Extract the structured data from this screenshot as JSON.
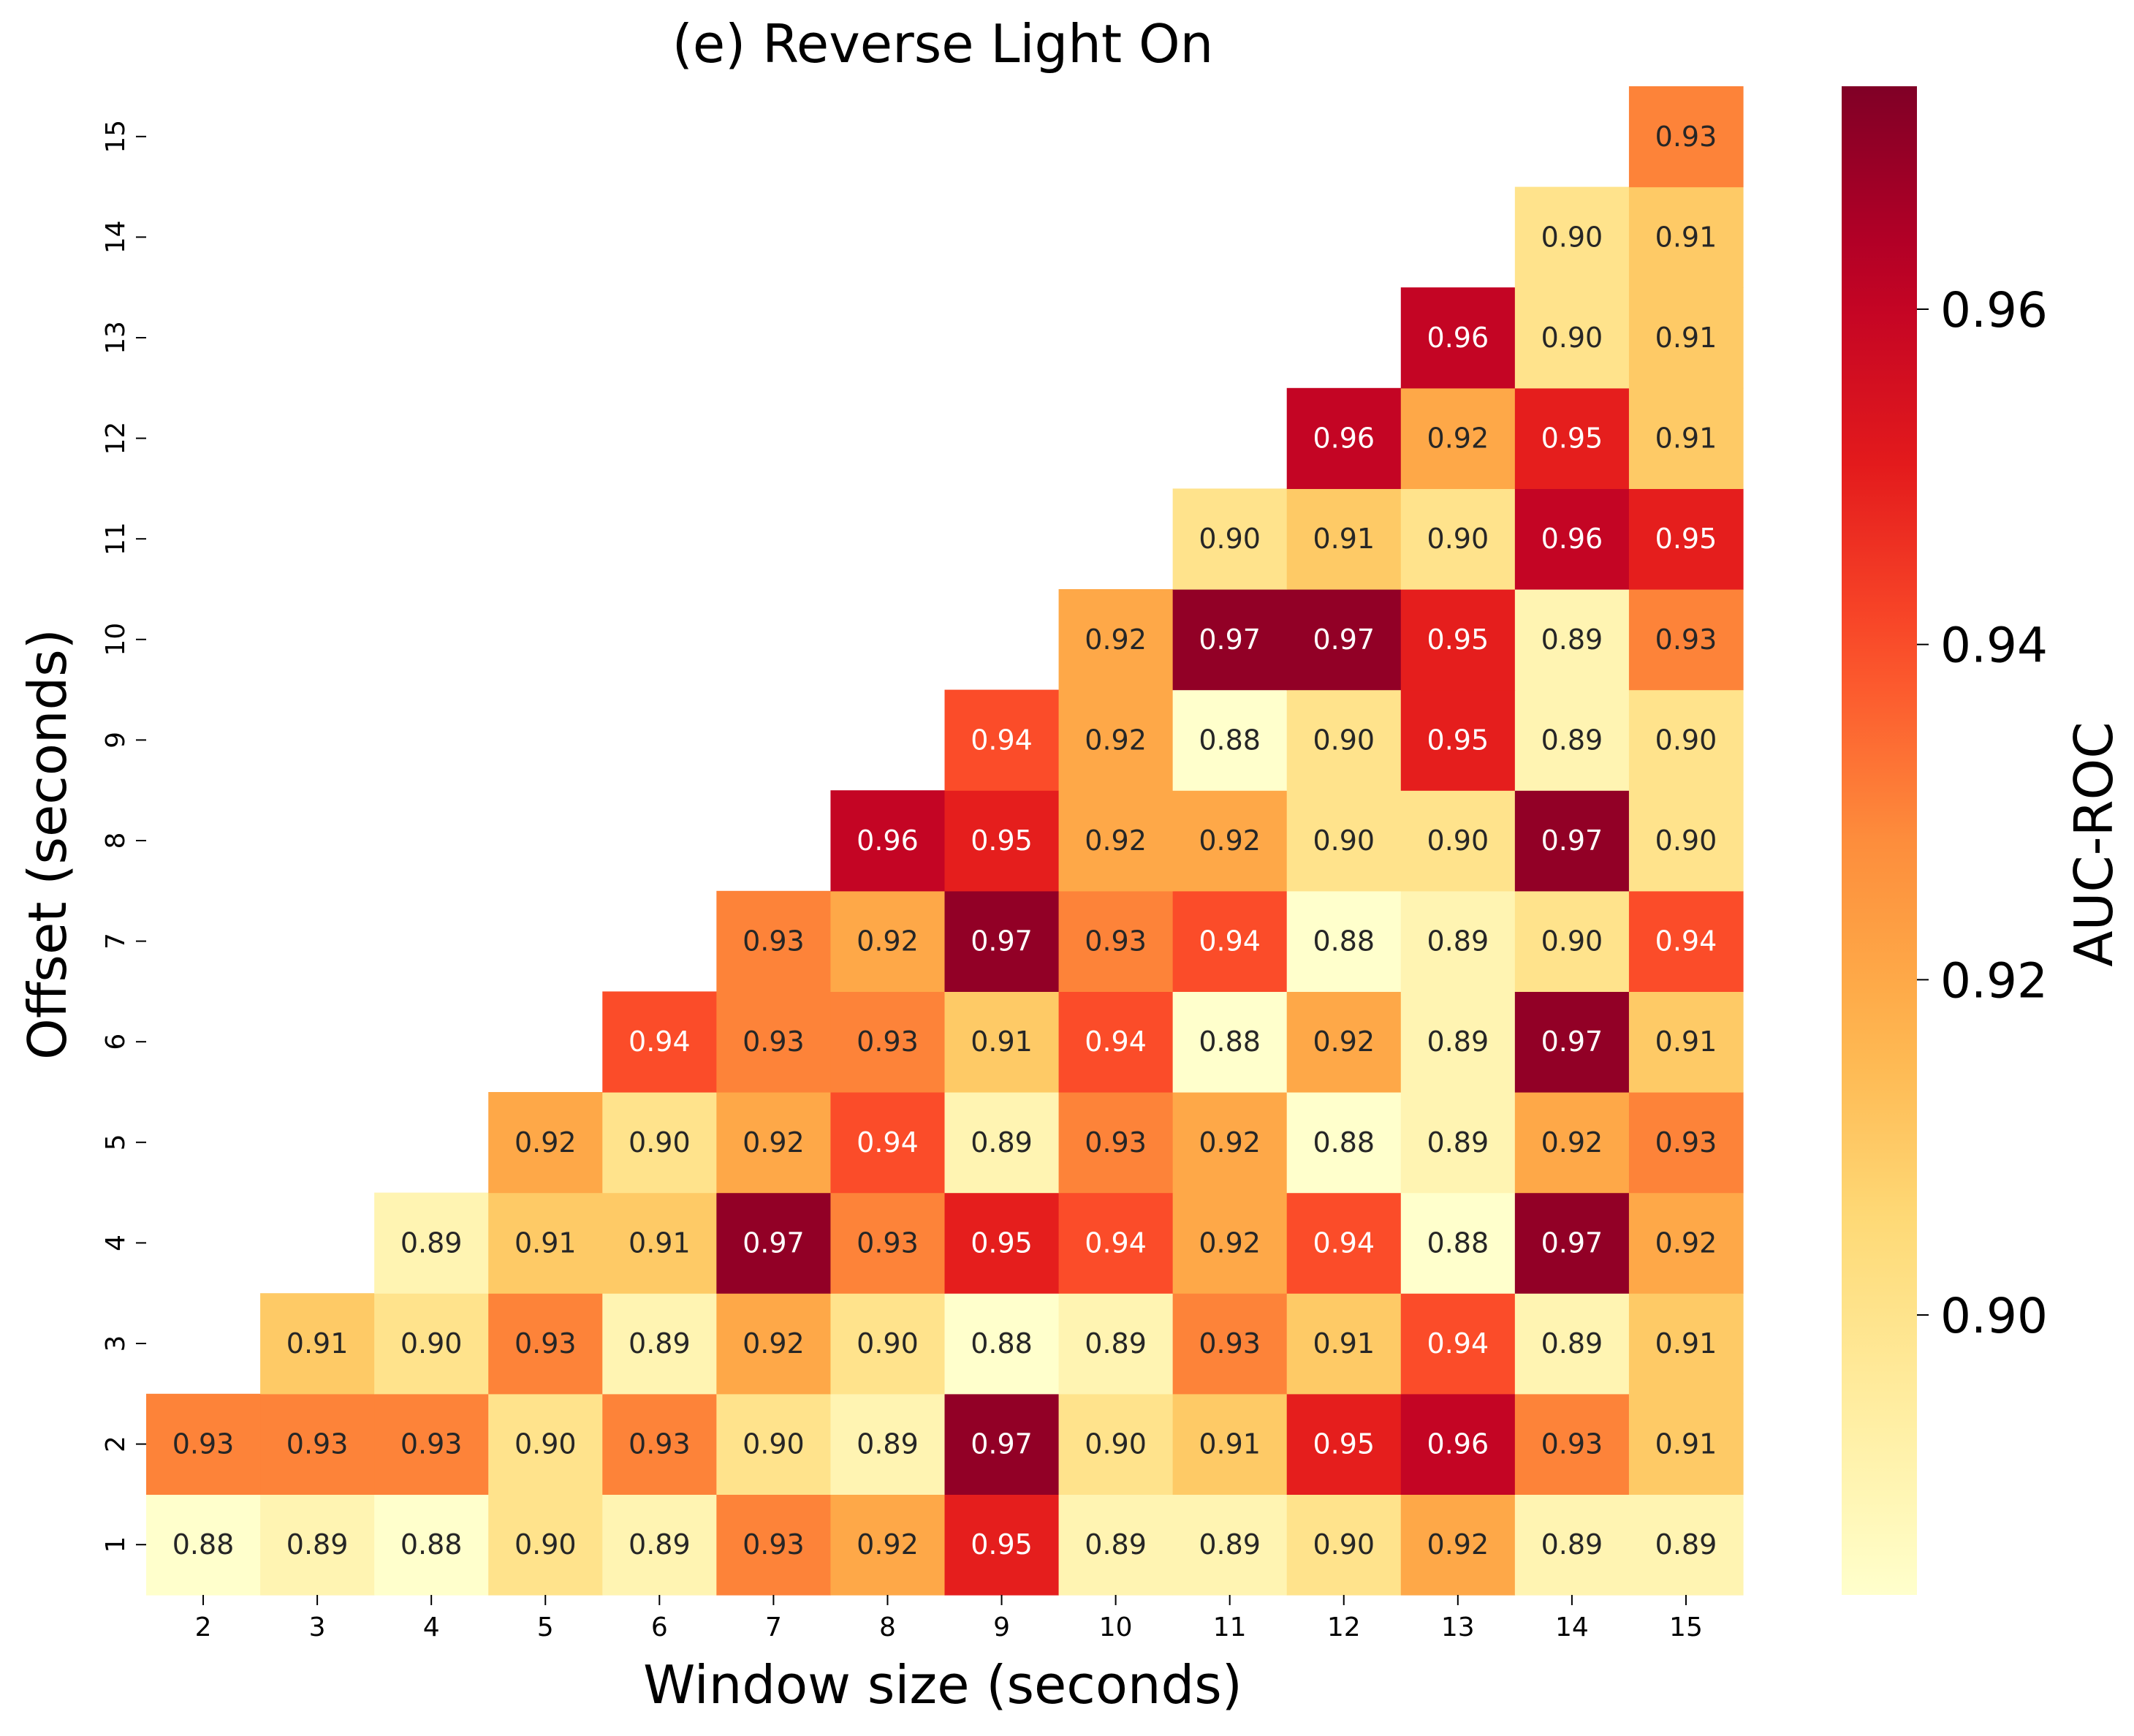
{
  "chart_data": {
    "type": "heatmap",
    "title": "(e) Reverse Light On",
    "xlabel": "Window size (seconds)",
    "ylabel": "Offset (seconds)",
    "colorbar_label": "AUC-ROC",
    "colormap": "YlOrRd",
    "colorbar_range": [
      0.8833,
      0.9733
    ],
    "colorbar_ticks": [
      "0.90",
      "0.92",
      "0.94",
      "0.96"
    ],
    "x_categories": [
      "2",
      "3",
      "4",
      "5",
      "6",
      "7",
      "8",
      "9",
      "10",
      "11",
      "12",
      "13",
      "14",
      "15"
    ],
    "y_categories": [
      "1",
      "2",
      "3",
      "4",
      "5",
      "6",
      "7",
      "8",
      "9",
      "10",
      "11",
      "12",
      "13",
      "14",
      "15"
    ],
    "values": [
      [
        0.88,
        0.89,
        0.88,
        0.9,
        0.89,
        0.93,
        0.92,
        0.95,
        0.89,
        0.89,
        0.9,
        0.92,
        0.89,
        0.89
      ],
      [
        0.93,
        0.93,
        0.93,
        0.9,
        0.93,
        0.9,
        0.89,
        0.97,
        0.9,
        0.91,
        0.95,
        0.96,
        0.93,
        0.91
      ],
      [
        null,
        0.91,
        0.9,
        0.93,
        0.89,
        0.92,
        0.9,
        0.88,
        0.89,
        0.93,
        0.91,
        0.94,
        0.89,
        0.91
      ],
      [
        null,
        null,
        0.89,
        0.91,
        0.91,
        0.97,
        0.93,
        0.95,
        0.94,
        0.92,
        0.94,
        0.88,
        0.97,
        0.92
      ],
      [
        null,
        null,
        null,
        0.92,
        0.9,
        0.92,
        0.94,
        0.89,
        0.93,
        0.92,
        0.88,
        0.89,
        0.92,
        0.93
      ],
      [
        null,
        null,
        null,
        null,
        0.94,
        0.93,
        0.93,
        0.91,
        0.94,
        0.88,
        0.92,
        0.89,
        0.97,
        0.91
      ],
      [
        null,
        null,
        null,
        null,
        null,
        0.93,
        0.92,
        0.97,
        0.93,
        0.94,
        0.88,
        0.89,
        0.9,
        0.94
      ],
      [
        null,
        null,
        null,
        null,
        null,
        null,
        0.96,
        0.95,
        0.92,
        0.92,
        0.9,
        0.9,
        0.97,
        0.9
      ],
      [
        null,
        null,
        null,
        null,
        null,
        null,
        null,
        0.94,
        0.92,
        0.88,
        0.9,
        0.95,
        0.89,
        0.9
      ],
      [
        null,
        null,
        null,
        null,
        null,
        null,
        null,
        null,
        0.92,
        0.97,
        0.97,
        0.95,
        0.89,
        0.93
      ],
      [
        null,
        null,
        null,
        null,
        null,
        null,
        null,
        null,
        null,
        0.9,
        0.91,
        0.9,
        0.96,
        0.95
      ],
      [
        null,
        null,
        null,
        null,
        null,
        null,
        null,
        null,
        null,
        null,
        0.96,
        0.92,
        0.95,
        0.91
      ],
      [
        null,
        null,
        null,
        null,
        null,
        null,
        null,
        null,
        null,
        null,
        null,
        0.96,
        0.9,
        0.91
      ],
      [
        null,
        null,
        null,
        null,
        null,
        null,
        null,
        null,
        null,
        null,
        null,
        null,
        0.9,
        0.91
      ],
      [
        null,
        null,
        null,
        null,
        null,
        null,
        null,
        null,
        null,
        null,
        null,
        null,
        null,
        0.93
      ]
    ]
  }
}
